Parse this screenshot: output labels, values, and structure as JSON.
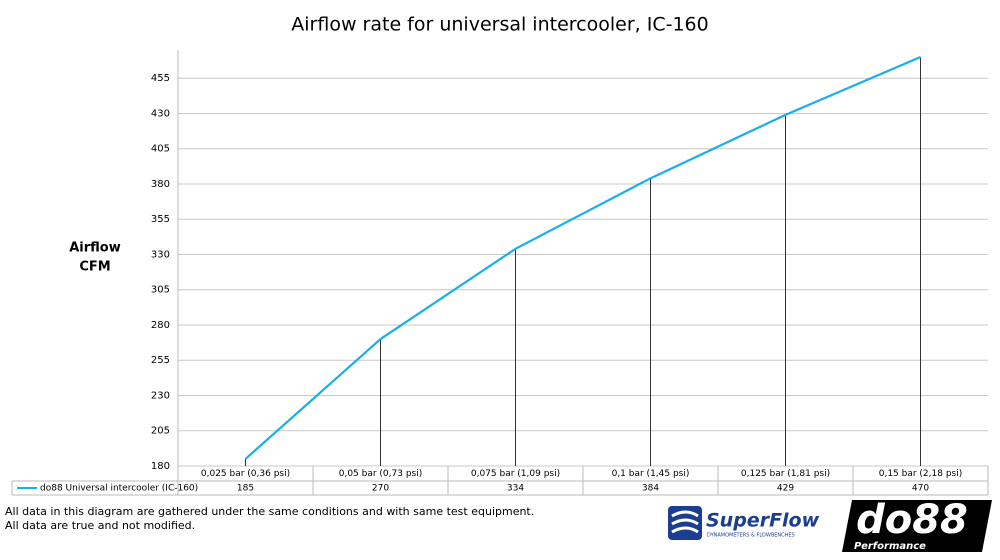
{
  "chart_data": {
    "type": "line",
    "title": "Airflow rate for universal intercooler, IC-160",
    "y_label": [
      "Airflow",
      "CFM"
    ],
    "categories": [
      "0,025 bar (0,36 psi)",
      "0,05 bar (0,73 psi)",
      "0,075 bar (1,09 psi)",
      "0,1 bar (1,45 psi)",
      "0,125 bar (1,81 psi)",
      "0,15 bar (2,18 psi)"
    ],
    "series": [
      {
        "name": "do88 Universal intercooler (IC-160)",
        "color": "#1aaeea",
        "values": [
          185,
          270,
          334,
          384,
          429,
          470
        ]
      }
    ],
    "ylim": [
      180,
      475
    ],
    "yticks": [
      180,
      205,
      230,
      255,
      280,
      305,
      330,
      355,
      380,
      405,
      430,
      455
    ],
    "grid": true,
    "drop_lines": true
  },
  "footer": {
    "notes": [
      "All data in this diagram are gathered under the same conditions and with same test equipment.",
      "All data are true and not modified."
    ],
    "logos": {
      "superflow": "SuperFlow",
      "superflow_tagline": "DYNAMOMETERS & FLOWBENCHES",
      "do88": "do88",
      "do88_tagline": "Performance"
    }
  }
}
